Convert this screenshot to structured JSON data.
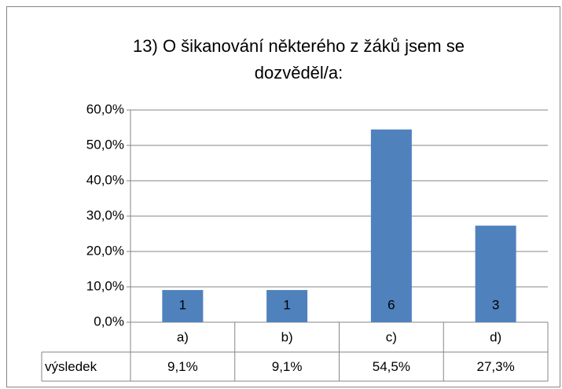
{
  "chart_data": {
    "type": "bar",
    "title": "13) O šikanování některého z žáků jsem se dozvěděl/a:",
    "categories": [
      "a)",
      "b)",
      "c)",
      "d)"
    ],
    "series": [
      {
        "name": "výsledek",
        "color": "#4f81bd",
        "values": [
          9.1,
          9.1,
          54.5,
          27.3
        ],
        "value_labels": [
          "9,1%",
          "9,1%",
          "54,5%",
          "27,3%"
        ],
        "data_labels": [
          1,
          1,
          6,
          3
        ]
      }
    ],
    "ylim": [
      0,
      60
    ],
    "yticks": [
      {
        "value": 0,
        "label": "0,0%"
      },
      {
        "value": 10,
        "label": "10,0%"
      },
      {
        "value": 20,
        "label": "20,0%"
      },
      {
        "value": 30,
        "label": "30,0%"
      },
      {
        "value": 40,
        "label": "40,0%"
      },
      {
        "value": 50,
        "label": "50,0%"
      },
      {
        "value": 60,
        "label": "60,0%"
      }
    ],
    "grid": true
  }
}
